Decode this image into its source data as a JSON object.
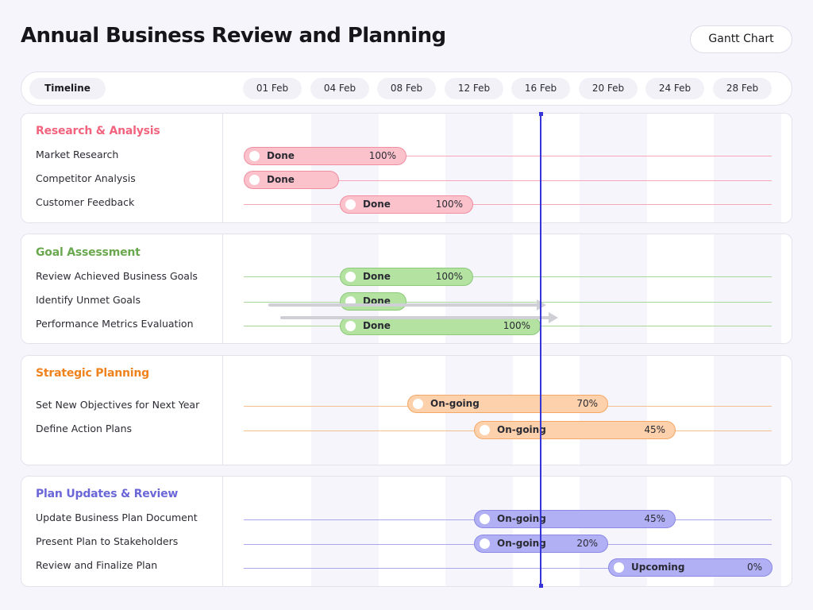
{
  "title": "Annual Business Review and Planning",
  "view_button": "Gantt Chart",
  "timeline_label": "Timeline",
  "dates": [
    "01 Feb",
    "04 Feb",
    "08 Feb",
    "12 Feb",
    "16 Feb",
    "20 Feb",
    "24 Feb",
    "28 Feb"
  ],
  "colors": {
    "research": "#f2647e",
    "goal": "#6aa84f",
    "strategic": "#f0821e",
    "plan": "#6a66d8",
    "today_line": "#3535d8"
  },
  "chart_data": {
    "type": "gantt",
    "x_axis": [
      "01 Feb",
      "04 Feb",
      "08 Feb",
      "12 Feb",
      "16 Feb",
      "20 Feb",
      "24 Feb",
      "28 Feb"
    ],
    "today_marker": "16 Feb",
    "groups": [
      {
        "name": "Research & Analysis",
        "tasks": [
          {
            "name": "Market Research",
            "status": "Done",
            "progress": "100%"
          },
          {
            "name": "Competitor Analysis",
            "status": "Done",
            "progress": ""
          },
          {
            "name": "Customer Feedback",
            "status": "Done",
            "progress": "100%"
          }
        ]
      },
      {
        "name": "Goal Assessment",
        "tasks": [
          {
            "name": "Review Achieved Business Goals",
            "status": "Done",
            "progress": "100%"
          },
          {
            "name": "Identify Unmet Goals",
            "status": "Done",
            "progress": ""
          },
          {
            "name": "Performance Metrics Evaluation",
            "status": "Done",
            "progress": "100%"
          }
        ]
      },
      {
        "name": "Strategic Planning",
        "tasks": [
          {
            "name": "Set New Objectives for Next Year",
            "status": "On-going",
            "progress": "70%"
          },
          {
            "name": "Define Action Plans",
            "status": "On-going",
            "progress": "45%"
          }
        ]
      },
      {
        "name": "Plan Updates & Review",
        "tasks": [
          {
            "name": "Update Business Plan Document",
            "status": "On-going",
            "progress": "45%"
          },
          {
            "name": "Present Plan to Stakeholders",
            "status": "On-going",
            "progress": "20%"
          },
          {
            "name": "Review and Finalize Plan",
            "status": "Upcoming",
            "progress": "0%"
          }
        ]
      }
    ]
  }
}
